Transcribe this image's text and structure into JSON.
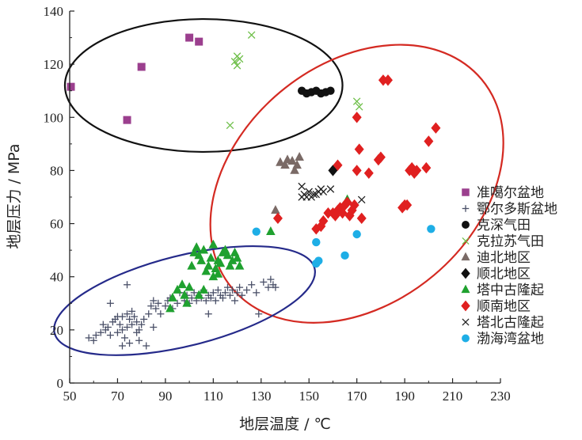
{
  "chart_data": {
    "type": "scatter",
    "title": "",
    "xlabel": "地层温度 / ℃",
    "ylabel": "地层压力 / MPa",
    "xlim": [
      50,
      230
    ],
    "ylim": [
      0,
      140
    ],
    "xticks": [
      "50",
      "70",
      "90",
      "110",
      "130",
      "150",
      "170",
      "190",
      "210",
      "230"
    ],
    "yticks": [
      "0",
      "20",
      "40",
      "60",
      "80",
      "100",
      "120",
      "140"
    ],
    "grid": false,
    "legend_position": "right",
    "series": [
      {
        "name": "准噶尔盆地",
        "marker": "square",
        "color": "#9b3f8e",
        "points": [
          [
            50.5,
            111.5
          ],
          [
            80,
            119
          ],
          [
            74,
            99
          ],
          [
            100,
            130
          ],
          [
            104,
            128.5
          ]
        ]
      },
      {
        "name": "鄂尔多斯盆地",
        "marker": "plus",
        "color": "#4a5068",
        "points": [
          [
            58,
            17
          ],
          [
            60,
            16
          ],
          [
            61,
            18
          ],
          [
            63,
            19
          ],
          [
            64,
            22
          ],
          [
            65,
            20
          ],
          [
            66,
            21
          ],
          [
            67,
            18
          ],
          [
            68,
            23
          ],
          [
            69,
            24
          ],
          [
            70,
            19
          ],
          [
            71,
            22
          ],
          [
            72,
            20
          ],
          [
            72,
            25
          ],
          [
            73,
            17
          ],
          [
            74,
            21
          ],
          [
            74,
            26
          ],
          [
            75,
            15
          ],
          [
            75,
            24
          ],
          [
            76,
            22
          ],
          [
            77,
            25
          ],
          [
            78,
            19
          ],
          [
            78,
            23
          ],
          [
            79,
            20
          ],
          [
            80,
            22
          ],
          [
            81,
            24
          ],
          [
            82,
            14
          ],
          [
            83,
            26
          ],
          [
            84,
            29
          ],
          [
            85,
            31
          ],
          [
            86,
            28
          ],
          [
            87,
            30
          ],
          [
            88,
            26
          ],
          [
            90,
            29
          ],
          [
            91,
            31
          ],
          [
            92,
            32
          ],
          [
            93,
            28
          ],
          [
            95,
            30
          ],
          [
            96,
            34
          ],
          [
            98,
            31
          ],
          [
            99,
            33
          ],
          [
            100,
            30
          ],
          [
            101,
            32
          ],
          [
            102,
            34
          ],
          [
            103,
            31
          ],
          [
            104,
            33
          ],
          [
            105,
            32
          ],
          [
            106,
            35
          ],
          [
            107,
            31
          ],
          [
            108,
            33
          ],
          [
            109,
            32
          ],
          [
            110,
            34
          ],
          [
            111,
            31
          ],
          [
            112,
            35
          ],
          [
            113,
            33
          ],
          [
            114,
            32
          ],
          [
            115,
            34
          ],
          [
            116,
            36
          ],
          [
            117,
            33
          ],
          [
            118,
            35
          ],
          [
            119,
            31
          ],
          [
            120,
            34
          ],
          [
            121,
            36
          ],
          [
            122,
            33
          ],
          [
            124,
            35
          ],
          [
            126,
            37
          ],
          [
            128,
            34
          ],
          [
            129,
            26
          ],
          [
            131,
            38
          ],
          [
            133,
            36
          ],
          [
            134,
            39
          ],
          [
            135,
            37
          ],
          [
            136,
            36
          ],
          [
            74,
            37
          ],
          [
            67,
            30
          ],
          [
            72,
            14
          ],
          [
            70,
            25
          ],
          [
            76,
            27
          ],
          [
            79,
            16
          ],
          [
            85,
            21
          ],
          [
            108,
            26
          ]
        ]
      },
      {
        "name": "克深气田",
        "marker": "circle",
        "color": "#111111",
        "points": [
          [
            147,
            110
          ],
          [
            149,
            109
          ],
          [
            151,
            109.5
          ],
          [
            153,
            110
          ],
          [
            155,
            109
          ],
          [
            157,
            109.5
          ],
          [
            159,
            110
          ]
        ]
      },
      {
        "name": "克拉苏气田",
        "marker": "x",
        "color": "#6fbf4a",
        "points": [
          [
            126,
            131
          ],
          [
            120,
            123
          ],
          [
            121,
            122
          ],
          [
            119,
            121
          ],
          [
            120,
            119.5
          ],
          [
            117,
            97
          ],
          [
            170,
            106
          ],
          [
            171,
            104
          ]
        ]
      },
      {
        "name": "迪北地区",
        "marker": "triangle",
        "color": "#7a6a66",
        "points": [
          [
            138,
            83
          ],
          [
            140,
            82
          ],
          [
            141,
            84
          ],
          [
            143,
            83.5
          ],
          [
            144,
            80
          ],
          [
            145,
            82
          ],
          [
            146,
            85
          ],
          [
            136,
            65
          ]
        ]
      },
      {
        "name": "顺北地区",
        "marker": "diamond",
        "color": "#111111",
        "points": [
          [
            160,
            80
          ]
        ]
      },
      {
        "name": "塔中古隆起",
        "marker": "triangle",
        "color": "#1fa12f",
        "points": [
          [
            92,
            28
          ],
          [
            93,
            32
          ],
          [
            95,
            35
          ],
          [
            97,
            37
          ],
          [
            98,
            33
          ],
          [
            99,
            30
          ],
          [
            100,
            36
          ],
          [
            101,
            44
          ],
          [
            102,
            49
          ],
          [
            103,
            51
          ],
          [
            104,
            48
          ],
          [
            105,
            46
          ],
          [
            106,
            50
          ],
          [
            107,
            42
          ],
          [
            108,
            44
          ],
          [
            109,
            47
          ],
          [
            110,
            52
          ],
          [
            111,
            43
          ],
          [
            112,
            46
          ],
          [
            113,
            45
          ],
          [
            114,
            49
          ],
          [
            115,
            50
          ],
          [
            116,
            48
          ],
          [
            117,
            44
          ],
          [
            118,
            46
          ],
          [
            119,
            49
          ],
          [
            120,
            47
          ],
          [
            121,
            44
          ],
          [
            104,
            33
          ],
          [
            106,
            35
          ],
          [
            110,
            40
          ],
          [
            112,
            41
          ],
          [
            166,
            69
          ],
          [
            134,
            57
          ]
        ]
      },
      {
        "name": "顺南地区",
        "marker": "diamond",
        "color": "#e02020",
        "points": [
          [
            137,
            62
          ],
          [
            153,
            58
          ],
          [
            155,
            59
          ],
          [
            156,
            61
          ],
          [
            158,
            64
          ],
          [
            160,
            64
          ],
          [
            161,
            63
          ],
          [
            162,
            65
          ],
          [
            163,
            66
          ],
          [
            164,
            64
          ],
          [
            165,
            67
          ],
          [
            166,
            68
          ],
          [
            167,
            63
          ],
          [
            168,
            65
          ],
          [
            169,
            67
          ],
          [
            170,
            80
          ],
          [
            171,
            88
          ],
          [
            172,
            62
          ],
          [
            175,
            79
          ],
          [
            179,
            84
          ],
          [
            180,
            85
          ],
          [
            181,
            114
          ],
          [
            183,
            114
          ],
          [
            189,
            66
          ],
          [
            190,
            67
          ],
          [
            191,
            67
          ],
          [
            192,
            80
          ],
          [
            193,
            81
          ],
          [
            194,
            79
          ],
          [
            195,
            80
          ],
          [
            199,
            81
          ],
          [
            200,
            91
          ],
          [
            203,
            96
          ],
          [
            170,
            100
          ],
          [
            162,
            82
          ]
        ]
      },
      {
        "name": "塔北古隆起",
        "marker": "x",
        "color": "#222222",
        "points": [
          [
            147,
            74
          ],
          [
            148,
            71
          ],
          [
            149,
            70
          ],
          [
            150,
            72
          ],
          [
            151,
            70
          ],
          [
            152,
            71
          ],
          [
            153,
            71
          ],
          [
            154,
            72
          ],
          [
            155,
            73
          ],
          [
            156,
            72
          ],
          [
            159,
            73
          ],
          [
            172,
            69
          ],
          [
            147,
            70
          ]
        ]
      },
      {
        "name": "渤海湾盆地",
        "marker": "circle",
        "color": "#1eaee6",
        "points": [
          [
            128,
            57
          ],
          [
            153,
            53
          ],
          [
            153,
            45
          ],
          [
            154,
            46
          ],
          [
            165,
            48
          ],
          [
            170,
            56
          ],
          [
            201,
            58
          ]
        ]
      }
    ],
    "ellipses": [
      {
        "cx": 106,
        "cy": 112,
        "rx": 58,
        "ry": 25,
        "angle": 0,
        "color": "#111111"
      },
      {
        "cx": 170,
        "cy": 75,
        "rx": 68,
        "ry": 45,
        "angle": 40,
        "color": "#d42a22"
      },
      {
        "cx": 98,
        "cy": 31,
        "rx": 56,
        "ry": 17,
        "angle": 14,
        "color": "#252a8a"
      }
    ]
  }
}
